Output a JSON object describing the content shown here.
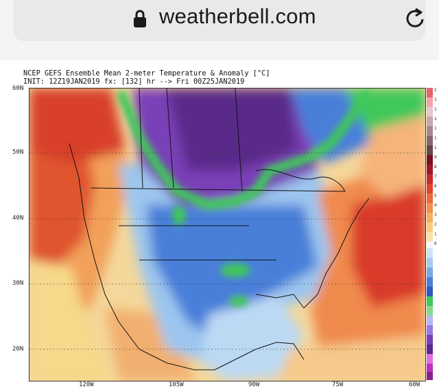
{
  "browser": {
    "url": "weatherbell.com",
    "icons": {
      "lock": "lock-icon",
      "reload": "reload-icon"
    }
  },
  "chart": {
    "title": "NCEP GEFS Ensemble Mean 2-meter Temperature & Anomaly [°C]",
    "subtitle": "INIT: 12Z19JAN2019 fx: [132] hr --> Fri 00Z25JAN2019",
    "lat_labels": [
      "60N",
      "50N",
      "40N",
      "30N",
      "20N"
    ],
    "lon_labels": [
      "120W",
      "105W",
      "90W",
      "75W",
      "60W"
    ],
    "colorbar_labels": [
      "2",
      "1",
      "1",
      "1",
      "1",
      "1",
      "1",
      "9",
      "8",
      "7",
      "6",
      "5",
      "4",
      "3",
      "2",
      "1",
      "0"
    ],
    "colors": {
      "deep_cold": "#5a2a8a",
      "cold": "#7a3fb8",
      "blue": "#4a7fd9",
      "light_blue": "#9cc6ee",
      "green": "#3fc85a",
      "warm": "#f08a4e",
      "hot": "#d93a2a",
      "yellow": "#f6d98a"
    }
  }
}
